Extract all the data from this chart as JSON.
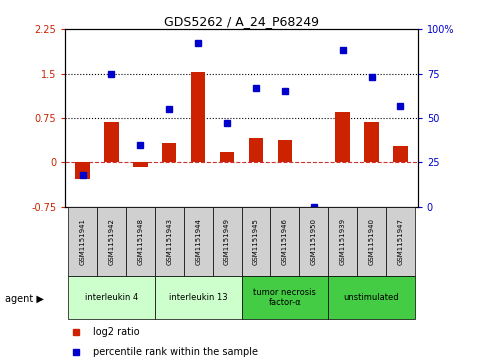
{
  "title": "GDS5262 / A_24_P68249",
  "samples": [
    "GSM1151941",
    "GSM1151942",
    "GSM1151948",
    "GSM1151943",
    "GSM1151944",
    "GSM1151949",
    "GSM1151945",
    "GSM1151946",
    "GSM1151950",
    "GSM1151939",
    "GSM1151940",
    "GSM1151947"
  ],
  "log2_ratio": [
    -0.28,
    0.68,
    -0.07,
    0.32,
    1.52,
    0.18,
    0.42,
    0.38,
    0.0,
    0.85,
    0.68,
    0.28
  ],
  "percentile": [
    18,
    75,
    35,
    55,
    92,
    47,
    67,
    65,
    0,
    88,
    73,
    57
  ],
  "groups": [
    {
      "label": "interleukin 4",
      "start": 0,
      "end": 3,
      "color": "#ccffcc"
    },
    {
      "label": "interleukin 13",
      "start": 3,
      "end": 6,
      "color": "#ccffcc"
    },
    {
      "label": "tumor necrosis\nfactor-α",
      "start": 6,
      "end": 9,
      "color": "#44cc44"
    },
    {
      "label": "unstimulated",
      "start": 9,
      "end": 12,
      "color": "#44cc44"
    }
  ],
  "ylim_left": [
    -0.75,
    2.25
  ],
  "ylim_right": [
    0,
    100
  ],
  "yticks_left": [
    -0.75,
    0,
    0.75,
    1.5,
    2.25
  ],
  "ytick_labels_left": [
    "-0.75",
    "0",
    "0.75",
    "1.5",
    "2.25"
  ],
  "yticks_right": [
    0,
    25,
    50,
    75,
    100
  ],
  "ytick_labels_right": [
    "0",
    "25",
    "50",
    "75",
    "100%"
  ],
  "hlines": [
    0.75,
    1.5
  ],
  "bar_color": "#cc2200",
  "dot_color": "#0000cc",
  "tick_label_color_left": "#cc2200",
  "tick_label_color_right": "#0000cc",
  "zero_line_color": "#cc3333",
  "legend_items": [
    "log2 ratio",
    "percentile rank within the sample"
  ],
  "agent_label": "agent",
  "sample_box_color": "#d0d0d0",
  "group_colors_light": "#ccffcc",
  "group_colors_dark": "#44cc44"
}
